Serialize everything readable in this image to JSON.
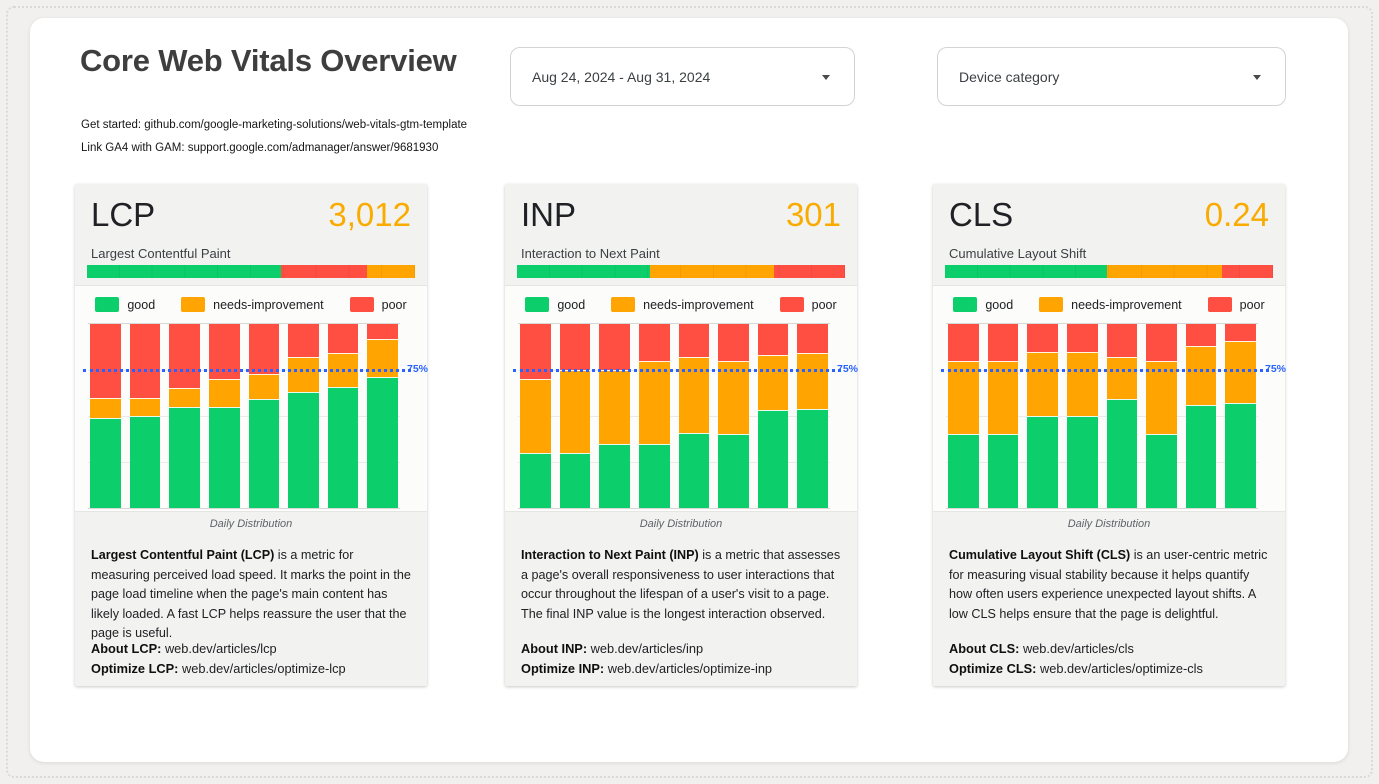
{
  "header": {
    "title": "Core Web Vitals Overview",
    "links": [
      "Get started: github.com/google-marketing-solutions/web-vitals-gtm-template",
      "Link GA4 with GAM: support.google.com/admanager/answer/9681930"
    ]
  },
  "filters": {
    "date_range": "Aug 24, 2024 - Aug 31, 2024",
    "device_category": "Device category"
  },
  "colors": {
    "good": "#0CCE6B",
    "needs_improvement": "#FFA400",
    "poor": "#FF4E42",
    "metric_value": "#F9AB00",
    "reference_line": "#2962FF"
  },
  "cards": [
    {
      "metric": "LCP",
      "value": "3,012",
      "subtitle": "Largest Contentful Paint",
      "summary_bar": [
        {
          "name": "good",
          "pct": 59
        },
        {
          "name": "poor",
          "pct": 26.5
        },
        {
          "name": "needs-improvement",
          "pct": 14.5
        }
      ],
      "desc_bold": "Largest Contentful Paint (LCP)",
      "desc_rest": " is a metric for measuring perceived load speed. It marks the point in the page load timeline when the page's main content has likely loaded. A fast LCP helps reassure the user that the page is useful.",
      "about_label": "About LCP:",
      "about_url": "web.dev/articles/lcp",
      "optimize_label": "Optimize LCP:",
      "optimize_url": "web.dev/articles/optimize-lcp"
    },
    {
      "metric": "INP",
      "value": "301",
      "subtitle": "Interaction to Next Paint",
      "summary_bar": [
        {
          "name": "good",
          "pct": 40.5
        },
        {
          "name": "needs-improvement",
          "pct": 38
        },
        {
          "name": "poor",
          "pct": 21.5
        }
      ],
      "desc_bold": "Interaction to Next Paint (INP)",
      "desc_rest": " is a metric that assesses a page's overall responsiveness to user interactions that occur throughout the lifespan of a user's visit to a page. The final INP value is the longest interaction observed.",
      "about_label": "About INP:",
      "about_url": "web.dev/articles/inp",
      "optimize_label": "Optimize INP:",
      "optimize_url": "web.dev/articles/optimize-inp"
    },
    {
      "metric": "CLS",
      "value": "0.24",
      "subtitle": "Cumulative Layout Shift",
      "summary_bar": [
        {
          "name": "good",
          "pct": 49.5
        },
        {
          "name": "needs-improvement",
          "pct": 35
        },
        {
          "name": "poor",
          "pct": 15.5
        }
      ],
      "desc_bold": "Cumulative Layout Shift (CLS)",
      "desc_rest": " is an user-centric metric for measuring visual stability because it helps quantify how often users experience unexpected layout shifts. A low CLS helps ensure that the page is delightful.",
      "about_label": "About CLS:",
      "about_url": "web.dev/articles/cls",
      "optimize_label": "Optimize CLS:",
      "optimize_url": "web.dev/articles/optimize-cls"
    }
  ],
  "chart_data": [
    {
      "type": "bar",
      "stacked": true,
      "percent_scale": true,
      "title": "LCP Daily Distribution",
      "num_bars": 8,
      "x_tick_labels": [],
      "ylim": [
        0,
        100
      ],
      "series": [
        {
          "name": "good",
          "color": "#0CCE6B",
          "values": [
            49,
            50,
            55,
            55,
            59,
            63,
            66,
            71
          ]
        },
        {
          "name": "needs-improvement",
          "color": "#FFA400",
          "values": [
            11,
            10,
            10,
            15,
            14,
            19,
            18,
            21
          ]
        },
        {
          "name": "poor",
          "color": "#FF4E42",
          "values": [
            40,
            40,
            35,
            30,
            27,
            18,
            16,
            8
          ]
        }
      ],
      "reference_line": {
        "value": 75,
        "label": "75%",
        "color": "#2962FF"
      },
      "legend_position": "top",
      "caption": "Daily Distribution"
    },
    {
      "type": "bar",
      "stacked": true,
      "percent_scale": true,
      "title": "INP Daily Distribution",
      "num_bars": 8,
      "x_tick_labels": [],
      "ylim": [
        0,
        100
      ],
      "series": [
        {
          "name": "good",
          "color": "#0CCE6B",
          "values": [
            30,
            30,
            35,
            35,
            41,
            40,
            53,
            54
          ]
        },
        {
          "name": "needs-improvement",
          "color": "#FFA400",
          "values": [
            40,
            45,
            40,
            45,
            41,
            40,
            30,
            30
          ]
        },
        {
          "name": "poor",
          "color": "#FF4E42",
          "values": [
            30,
            25,
            25,
            20,
            18,
            20,
            17,
            16
          ]
        }
      ],
      "reference_line": {
        "value": 75,
        "label": "75%",
        "color": "#2962FF"
      },
      "legend_position": "top",
      "caption": "Daily Distribution"
    },
    {
      "type": "bar",
      "stacked": true,
      "percent_scale": true,
      "title": "CLS Daily Distribution",
      "num_bars": 8,
      "x_tick_labels": [],
      "ylim": [
        0,
        100
      ],
      "series": [
        {
          "name": "good",
          "color": "#0CCE6B",
          "values": [
            40,
            40,
            50,
            50,
            59,
            40,
            56,
            57
          ]
        },
        {
          "name": "needs-improvement",
          "color": "#FFA400",
          "values": [
            40,
            40,
            35,
            35,
            23,
            40,
            32,
            34
          ]
        },
        {
          "name": "poor",
          "color": "#FF4E42",
          "values": [
            20,
            20,
            15,
            15,
            18,
            20,
            12,
            9
          ]
        }
      ],
      "reference_line": {
        "value": 75,
        "label": "75%",
        "color": "#2962FF"
      },
      "legend_position": "top",
      "caption": "Daily Distribution"
    }
  ]
}
